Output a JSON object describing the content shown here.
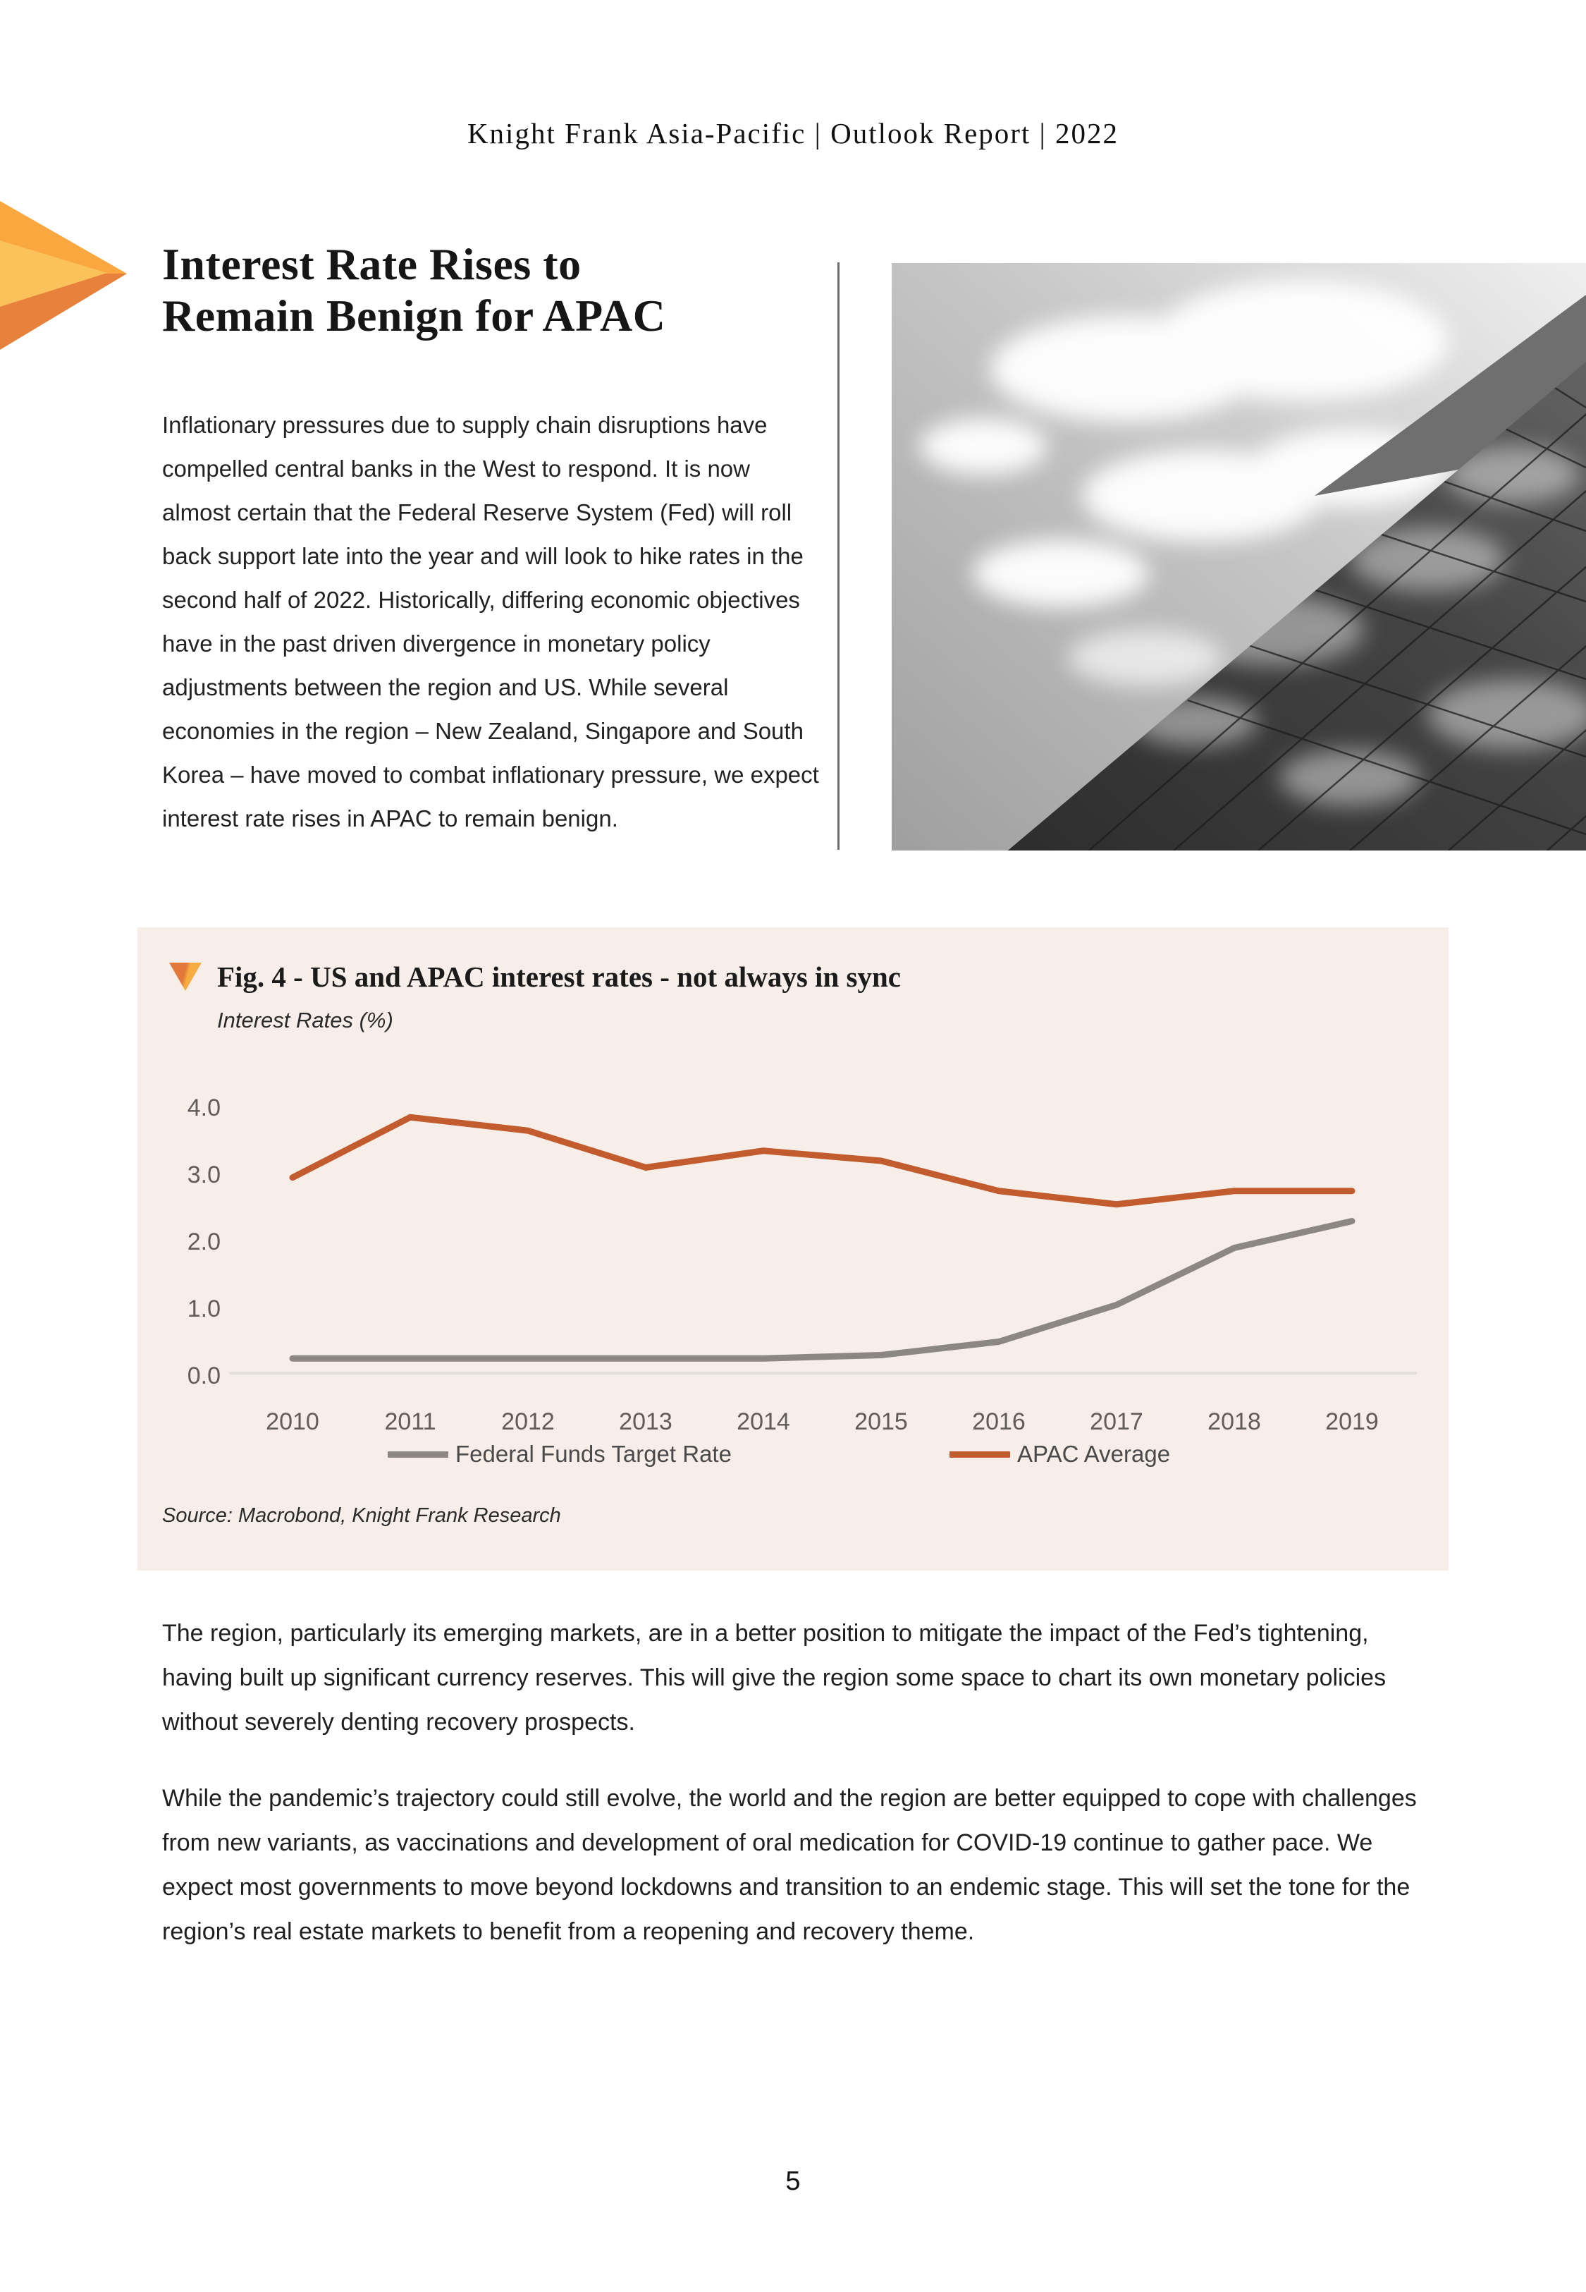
{
  "page": {
    "header": "Knight Frank Asia-Pacific | Outlook Report | 2022",
    "page_number": "5"
  },
  "article": {
    "title_lines": [
      "Interest Rate Rises to",
      "Remain Benign for APAC"
    ],
    "intro": "Inflationary pressures due to supply chain disruptions have compelled central banks in the West to respond. It is now almost certain that the Federal Reserve System (Fed) will roll back support late into the year and will look to hike rates in the second half of 2022. Historically, differing economic objectives have in the past driven divergence in monetary policy adjustments between the region and US. While several economies in the region – New Zealand, Singapore and South Korea – have moved to combat inflationary pressure, we expect interest rate rises in APAC to remain benign."
  },
  "figure": {
    "title": "Fig. 4 - US and APAC interest rates - not always in sync",
    "subtitle": "Interest Rates (%)",
    "source": "Source: Macrobond, Knight Frank Research",
    "panel_bg": "#F8EEE9",
    "accent_orange": "#E8823C"
  },
  "chart_data": {
    "type": "line",
    "title": "Fig. 4 - US and APAC interest rates - not always in sync",
    "ylabel": "Interest Rates (%)",
    "categories": [
      "2010",
      "2011",
      "2012",
      "2013",
      "2014",
      "2015",
      "2016",
      "2017",
      "2018",
      "2019"
    ],
    "series": [
      {
        "name": "Federal Funds Target Rate",
        "color": "#8C8781",
        "values": [
          0.25,
          0.25,
          0.25,
          0.25,
          0.25,
          0.3,
          0.5,
          1.05,
          1.9,
          2.3
        ]
      },
      {
        "name": "APAC Average",
        "color": "#C25B2D",
        "values": [
          2.95,
          3.85,
          3.65,
          3.1,
          3.35,
          3.2,
          2.75,
          2.55,
          2.75,
          2.75
        ]
      }
    ],
    "yticks": [
      0.0,
      1.0,
      2.0,
      3.0,
      4.0
    ],
    "ylim": [
      0,
      4.3
    ],
    "grid": false,
    "legend_position": "bottom",
    "baseline_color": "#E4DFD9",
    "tick_color": "#615C57"
  },
  "paragraphs": {
    "p1": "The region, particularly its emerging markets, are in a better position to mitigate the impact of the Fed’s tightening, having built up significant currency reserves. This will give the region some space to chart its own monetary policies without severely denting recovery prospects.",
    "p2": "While the pandemic’s trajectory could still evolve, the world and the region are better equipped to cope with challenges from new variants, as vaccinations and development of oral medication for COVID-19 continue to gather pace. We expect most governments to move beyond lockdowns and transition to an endemic stage. This will set the tone for the region’s real estate markets to benefit from a reopening and recovery theme."
  }
}
